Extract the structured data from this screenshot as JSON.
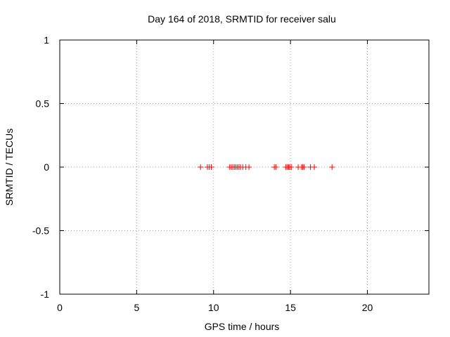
{
  "chart_data": {
    "type": "scatter",
    "title": "Day 164 of 2018, SRMTID for receiver salu",
    "xlabel": "GPS time / hours",
    "ylabel": "SRMTID / TECUs",
    "xlim": [
      0,
      24
    ],
    "ylim": [
      -1,
      1
    ],
    "xticks": [
      0,
      5,
      10,
      15,
      20
    ],
    "xtick_labels": [
      "0",
      "5",
      "10",
      "15",
      "20"
    ],
    "yticks": [
      -1,
      -0.5,
      0,
      0.5,
      1
    ],
    "ytick_labels": [
      "-1",
      "-0.5",
      "0",
      "0.5",
      "1"
    ],
    "grid": true,
    "marker": "+",
    "marker_color": "#ff0000",
    "series": [
      {
        "name": "SRMTID",
        "x": [
          9.15,
          9.6,
          9.72,
          9.85,
          11.05,
          11.15,
          11.25,
          11.35,
          11.45,
          11.55,
          11.65,
          11.75,
          11.9,
          12.1,
          12.3,
          13.95,
          14.05,
          14.7,
          14.8,
          14.88,
          14.95,
          15.05,
          15.5,
          15.72,
          15.8,
          15.88,
          16.3,
          16.55,
          17.7
        ],
        "y": [
          0,
          0,
          0,
          0,
          0,
          0,
          0,
          0,
          0,
          0,
          0,
          0,
          0,
          0,
          0,
          0,
          0,
          0,
          0,
          0,
          0,
          0,
          0,
          0,
          0,
          0,
          0,
          0,
          0
        ]
      }
    ]
  }
}
